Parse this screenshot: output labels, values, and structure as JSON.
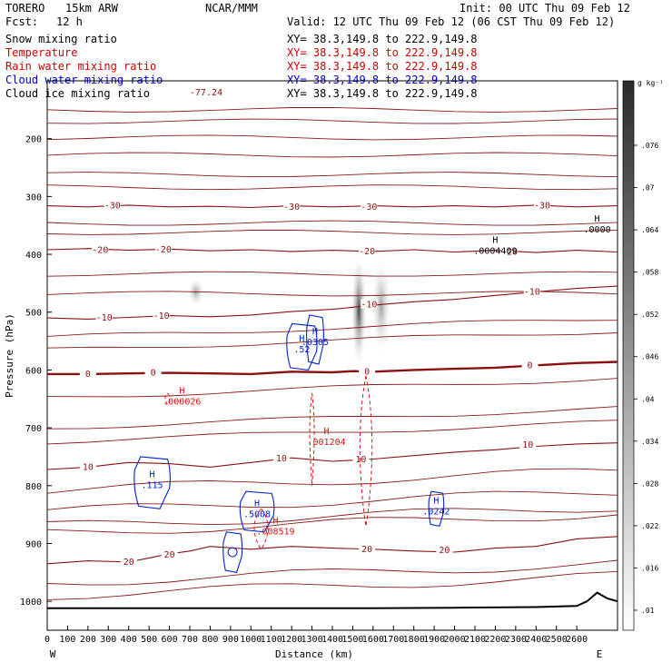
{
  "header": {
    "model": "TORERO",
    "config": "15km ARW",
    "org": "NCAR/MMM",
    "init": "Init: 00 UTC Thu 09 Feb 12",
    "fcst_label": "Fcst:",
    "fcst_value": "12 h",
    "valid": "Valid: 12 UTC Thu 09 Feb 12 (06 CST Thu 09 Feb 12)"
  },
  "fields": [
    {
      "name": "Snow mixing ratio",
      "xy": "XY=  38.3,149.8 to 222.9,149.8",
      "color": "#000000",
      "xy_color": "#000000"
    },
    {
      "name": "Temperature",
      "xy": "XY=  38.3,149.8 to 222.9,149.8",
      "color": "#cc0000",
      "xy_color": "#cc0000"
    },
    {
      "name": "Rain water mixing ratio",
      "xy": "XY=  38.3,149.8 to 222.9,149.8",
      "color": "#cc0000",
      "xy_color": "#cc0000"
    },
    {
      "name": "Cloud water mixing ratio",
      "xy": "XY=  38.3,149.8 to 222.9,149.8",
      "color": "#0000cc",
      "xy_color": "#0000cc"
    },
    {
      "name": "Cloud ice mixing ratio",
      "xy": "XY=  38.3,149.8 to 222.9,149.8",
      "color": "#000000",
      "xy_color": "#000000"
    }
  ],
  "chart_data": {
    "type": "contour",
    "xlabel": "Distance (km)",
    "ylabel": "Pressure (hPa)",
    "xlim": [
      0,
      2800
    ],
    "ylim": [
      1050,
      100
    ],
    "x_ticks": [
      0,
      100,
      200,
      300,
      400,
      500,
      600,
      700,
      800,
      900,
      1000,
      1100,
      1200,
      1300,
      1400,
      1500,
      1600,
      1700,
      1800,
      1900,
      2000,
      2100,
      2200,
      2300,
      2400,
      2500,
      2600
    ],
    "x_tick_labels": [
      "0",
      "100",
      "200",
      "300",
      "400",
      "500",
      "600",
      "700",
      "800",
      "900",
      "1000",
      "1100",
      "1200",
      "1300",
      "1400",
      "1500",
      "1600",
      "1700",
      "1800",
      "1900",
      "2000",
      "2100",
      "2200",
      "2300",
      "2400",
      "2500",
      "2600"
    ],
    "y_ticks": [
      200,
      300,
      400,
      500,
      600,
      700,
      800,
      900,
      1000
    ],
    "y_tick_labels": [
      "200",
      "300",
      "400",
      "500",
      "600",
      "700",
      "800",
      "900",
      "1000"
    ],
    "x_end_labels": {
      "left": "W",
      "right": "E"
    },
    "colorbar": {
      "unit": "g kg⁻¹",
      "labels": [
        ".076",
        ".07",
        ".064",
        ".058",
        ".052",
        ".046",
        ".04",
        ".034",
        ".028",
        ".022",
        ".016",
        ".01"
      ]
    },
    "temperature_contours": [
      {
        "label": "-30",
        "label_positions": [
          [
            320,
            316
          ],
          [
            1200,
            318
          ],
          [
            1580,
            318
          ],
          [
            2430,
            316
          ]
        ],
        "points": [
          [
            0,
            316
          ],
          [
            200,
            318
          ],
          [
            400,
            315
          ],
          [
            600,
            318
          ],
          [
            800,
            317
          ],
          [
            1000,
            319
          ],
          [
            1200,
            316
          ],
          [
            1400,
            318
          ],
          [
            1600,
            316
          ],
          [
            1800,
            318
          ],
          [
            2000,
            316
          ],
          [
            2200,
            318
          ],
          [
            2400,
            315
          ],
          [
            2600,
            318
          ],
          [
            2800,
            316
          ]
        ]
      },
      {
        "label": "-20",
        "label_positions": [
          [
            260,
            393
          ],
          [
            570,
            392
          ],
          [
            1570,
            395
          ],
          [
            2270,
            396
          ]
        ],
        "points": [
          [
            0,
            392
          ],
          [
            200,
            390
          ],
          [
            400,
            393
          ],
          [
            600,
            391
          ],
          [
            800,
            394
          ],
          [
            1000,
            392
          ],
          [
            1200,
            395
          ],
          [
            1400,
            393
          ],
          [
            1600,
            395
          ],
          [
            1800,
            392
          ],
          [
            2000,
            396
          ],
          [
            2200,
            393
          ],
          [
            2400,
            397
          ],
          [
            2600,
            393
          ],
          [
            2800,
            396
          ]
        ]
      },
      {
        "label": "-10",
        "label_positions": [
          [
            280,
            510
          ],
          [
            560,
            507
          ],
          [
            1580,
            487
          ],
          [
            2380,
            465
          ]
        ],
        "points": [
          [
            0,
            510
          ],
          [
            200,
            512
          ],
          [
            400,
            509
          ],
          [
            600,
            506
          ],
          [
            800,
            508
          ],
          [
            1000,
            505
          ],
          [
            1200,
            499
          ],
          [
            1400,
            495
          ],
          [
            1600,
            488
          ],
          [
            1800,
            482
          ],
          [
            2000,
            478
          ],
          [
            2200,
            471
          ],
          [
            2400,
            465
          ],
          [
            2600,
            459
          ],
          [
            2800,
            455
          ]
        ]
      },
      {
        "label": "0",
        "label_positions": [
          [
            200,
            607
          ],
          [
            520,
            605
          ],
          [
            1570,
            603
          ],
          [
            2370,
            592
          ]
        ],
        "points": [
          [
            0,
            607
          ],
          [
            200,
            607
          ],
          [
            400,
            606
          ],
          [
            600,
            605
          ],
          [
            800,
            606
          ],
          [
            1000,
            607
          ],
          [
            1200,
            603
          ],
          [
            1400,
            604
          ],
          [
            1500,
            602
          ],
          [
            1600,
            603
          ],
          [
            1800,
            600
          ],
          [
            2000,
            598
          ],
          [
            2200,
            596
          ],
          [
            2400,
            592
          ],
          [
            2600,
            588
          ],
          [
            2800,
            586
          ]
        ],
        "bold": true
      },
      {
        "label": "10",
        "label_positions": [
          [
            200,
            768
          ],
          [
            1150,
            753
          ],
          [
            1540,
            755
          ],
          [
            2360,
            730
          ]
        ],
        "points": [
          [
            0,
            772
          ],
          [
            200,
            768
          ],
          [
            400,
            760
          ],
          [
            600,
            762
          ],
          [
            800,
            768
          ],
          [
            1000,
            760
          ],
          [
            1200,
            752
          ],
          [
            1300,
            755
          ],
          [
            1400,
            758
          ],
          [
            1600,
            754
          ],
          [
            1800,
            748
          ],
          [
            2000,
            742
          ],
          [
            2200,
            738
          ],
          [
            2400,
            732
          ],
          [
            2600,
            728
          ],
          [
            2800,
            726
          ]
        ]
      },
      {
        "label": "20",
        "label_positions": [
          [
            400,
            932
          ],
          [
            600,
            920
          ],
          [
            1570,
            910
          ],
          [
            1950,
            912
          ]
        ],
        "points": [
          [
            0,
            935
          ],
          [
            200,
            930
          ],
          [
            400,
            932
          ],
          [
            600,
            918
          ],
          [
            700,
            913
          ],
          [
            800,
            905
          ],
          [
            1000,
            910
          ],
          [
            1200,
            905
          ],
          [
            1400,
            908
          ],
          [
            1600,
            910
          ],
          [
            1800,
            913
          ],
          [
            2000,
            915
          ],
          [
            2200,
            908
          ],
          [
            2400,
            905
          ],
          [
            2600,
            892
          ],
          [
            2800,
            888
          ]
        ]
      }
    ],
    "extra_isotherms_unlabeled": [
      150,
      170,
      198,
      228,
      262,
      284,
      346,
      362,
      434,
      468,
      544,
      566,
      648,
      700,
      724,
      808,
      844,
      870,
      882,
      968,
      990
    ],
    "snow_mixing_ratio_shading": [
      {
        "center": [
          730,
          440
        ],
        "halfwidth_km": 45,
        "top_hpa": 440,
        "bottom_hpa": 490,
        "max": 0.02
      },
      {
        "center": [
          1530,
          480
        ],
        "halfwidth_km": 40,
        "top_hpa": 395,
        "bottom_hpa": 600,
        "max": 0.08
      },
      {
        "center": [
          1640,
          490
        ],
        "halfwidth_km": 50,
        "top_hpa": 400,
        "bottom_hpa": 580,
        "max": 0.05
      }
    ],
    "cloud_water_contours": [
      {
        "label": ".115",
        "max_label": "H",
        "x": [
          420,
          610
        ],
        "y": [
          750,
          840
        ]
      },
      {
        "label": ".5008",
        "max_label": "H",
        "x": [
          940,
          1120
        ],
        "y": [
          810,
          880
        ]
      },
      {
        "label": ".52",
        "max_label": "H",
        "x": [
          1170,
          1330
        ],
        "y": [
          520,
          600
        ]
      },
      {
        "label": ".0305",
        "max_label": "H",
        "x": [
          1270,
          1360
        ],
        "y": [
          505,
          590
        ]
      },
      {
        "label": ".0242",
        "max_label": "H",
        "x": [
          1870,
          1950
        ],
        "y": [
          810,
          870
        ]
      },
      {
        "label": "",
        "max_label": "",
        "x": [
          860,
          960
        ],
        "y": [
          880,
          950
        ]
      }
    ],
    "rain_water_contours": [
      {
        "label": ".000026",
        "max_label": "H",
        "x": [
          580,
          600
        ],
        "y": [
          640,
          660
        ]
      },
      {
        "label": ".001204",
        "max_label": "H",
        "x": [
          1290,
          1310
        ],
        "y": [
          640,
          800
        ]
      },
      {
        "label": ".008519",
        "max_label": "H",
        "x": [
          1010,
          1090
        ],
        "y": [
          840,
          910
        ]
      },
      {
        "label": "",
        "max_label": "",
        "x": [
          1530,
          1600
        ],
        "y": [
          610,
          870
        ]
      }
    ],
    "cloud_ice_labels": [
      {
        "label": ".0004409",
        "max_label": "H",
        "x": 2200,
        "y": 380
      },
      {
        "label": ".0000",
        "max_label": "H",
        "x": 2700,
        "y": 343
      }
    ],
    "upper_label": {
      "text": "-77.24",
      "x": 780,
      "y": 125
    },
    "terrain": {
      "points": [
        [
          0,
          1012
        ],
        [
          400,
          1012
        ],
        [
          800,
          1012
        ],
        [
          1200,
          1012
        ],
        [
          1600,
          1012
        ],
        [
          2000,
          1011
        ],
        [
          2400,
          1010
        ],
        [
          2600,
          1008
        ],
        [
          2650,
          1000
        ],
        [
          2700,
          985
        ],
        [
          2750,
          995
        ],
        [
          2800,
          1000
        ]
      ]
    }
  }
}
